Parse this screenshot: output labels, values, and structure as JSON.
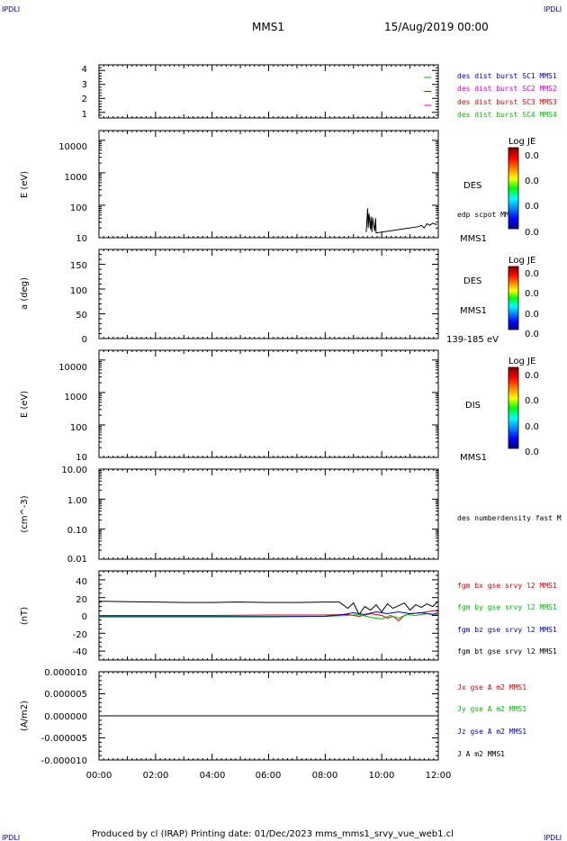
{
  "header": {
    "corner_tl": "IPDLI",
    "corner_tr": "IPDLI",
    "corner_bl": "IPDLI",
    "corner_br": "IPDLI",
    "spacecraft": "MMS1",
    "date": "15/Aug/2019 00:00"
  },
  "footer": {
    "text": "Produced by cl (IRAP)   Printing date: 01/Dec/2023   mms_mms1_srvy_vue_web1.cl"
  },
  "x_axis": {
    "ticks": [
      "00:00",
      "02:00",
      "04:00",
      "06:00",
      "08:00",
      "10:00",
      "12:00"
    ],
    "range_hours": [
      0,
      12
    ]
  },
  "colorbar": {
    "label": "Log JE",
    "values": [
      "0.0",
      "0.0",
      "0.0",
      "0.0"
    ]
  },
  "colors": {
    "c1": "#0000cc",
    "c2": "#cc00cc",
    "c3": "#dd0000",
    "c4": "#00bb00",
    "bx": "#dd0000",
    "by": "#00bb00",
    "bz": "#0000cc",
    "bt": "#000000"
  },
  "panels": {
    "p1": {
      "ticks": [
        "4",
        "3",
        "2",
        "1"
      ],
      "legend": [
        "des dist burst SC1 MMS1",
        "des dist burst SC2 MMS2",
        "des dist burst SC3 MMS3",
        "des dist burst SC4 MMS4"
      ]
    },
    "p2": {
      "ylabel": "E (eV)",
      "ticks": [
        "10000",
        "1000",
        "100",
        "10"
      ],
      "species": "DES",
      "overlay_label": "edp scpot MMS1",
      "sc_label": "MMS1"
    },
    "p3": {
      "ylabel": "a (deg)",
      "ticks": [
        "150",
        "100",
        "50",
        "0"
      ],
      "species": "DES",
      "sc_label": "MMS1",
      "energy_label": "139-185 eV"
    },
    "p4": {
      "ylabel": "E (eV)",
      "ticks": [
        "10000",
        "1000",
        "100",
        "10"
      ],
      "species": "DIS",
      "sc_label": "MMS1"
    },
    "p5": {
      "ylabel": "(cm^-3)",
      "ticks": [
        "10.00",
        "1.00",
        "0.10",
        "0.01"
      ],
      "legend": "des numberdensity fast M"
    },
    "p6": {
      "ylabel": "(nT)",
      "ticks": [
        "40",
        "20",
        "0",
        "-20",
        "-40"
      ],
      "legend": [
        "fgm bx gse srvy l2 MMS1",
        "fgm by gse srvy l2 MMS1",
        "fgm bz gse srvy l2 MMS1",
        "fgm bt gse srvy l2 MMS1"
      ]
    },
    "p7": {
      "ylabel": "(A/m2)",
      "ticks": [
        "0.000010",
        "0.000005",
        "0.000000",
        "-0.000005",
        "-0.000010"
      ],
      "legend": [
        "Jx gse A m2 MMS1",
        "Jy gse A m2 MMS1",
        "Jz gse A m2 MMS1",
        "J A m2 MMS1"
      ]
    }
  },
  "chart_data": [
    {
      "type": "line",
      "panel": "p1",
      "xlabel": "",
      "ylabel": "",
      "ylim": [
        0.6,
        4.4
      ],
      "series": [
        {
          "name": "des dist burst SC2 MMS2",
          "x": [
            11.5,
            12.0
          ],
          "y": [
            1.5,
            1.5
          ]
        },
        {
          "name": "des dist burst SC3 MMS3",
          "x": [
            11.5,
            12.0
          ],
          "y": [
            2.5,
            2.5
          ]
        },
        {
          "name": "des dist burst SC4 MMS4",
          "x": [
            11.5,
            12.0
          ],
          "y": [
            3.5,
            3.5
          ]
        }
      ]
    },
    {
      "type": "line",
      "panel": "p2",
      "ylabel": "E (eV)",
      "ylim": [
        10,
        20000
      ],
      "log_scale": true,
      "series": [
        {
          "name": "edp scpot MMS1",
          "x": [
            9.45,
            9.5,
            9.52,
            9.55,
            9.6,
            9.62,
            9.65,
            9.68,
            9.7,
            9.75,
            9.78,
            9.8,
            11.3,
            11.4,
            11.5,
            11.6,
            11.7,
            11.8,
            11.9,
            11.95
          ],
          "y": [
            15,
            80,
            20,
            55,
            18,
            45,
            15,
            42,
            30,
            16,
            40,
            14,
            22,
            24,
            20,
            27,
            24,
            28,
            26,
            25
          ]
        }
      ]
    },
    {
      "type": "line",
      "panel": "p6",
      "ylabel": "(nT)",
      "ylim": [
        -50,
        50
      ],
      "series": [
        {
          "name": "fgm bt gse srvy l2 MMS1",
          "x": [
            0,
            1,
            2,
            3,
            4,
            5,
            6,
            7,
            8,
            8.5,
            8.8,
            9.0,
            9.2,
            9.4,
            9.6,
            9.8,
            10.0,
            10.2,
            10.4,
            10.6,
            10.8,
            11.0,
            11.2,
            11.4,
            11.6,
            11.8,
            12.0
          ],
          "y": [
            16,
            15.5,
            15,
            14.5,
            14.5,
            15,
            14.5,
            14.5,
            15,
            15,
            8,
            14,
            1,
            10,
            6,
            12,
            4,
            13,
            8,
            11,
            14,
            6,
            12,
            9,
            13,
            10,
            16
          ]
        },
        {
          "name": "fgm bx gse srvy l2 MMS1",
          "x": [
            0,
            2,
            4,
            6,
            8,
            8.8,
            9.2,
            9.6,
            10.0,
            10.2,
            10.4,
            10.6,
            10.8,
            11.0,
            11.4,
            11.8,
            12.0
          ],
          "y": [
            0,
            0,
            0,
            0.5,
            0.5,
            1,
            -1,
            2,
            0,
            -3,
            -1,
            -6,
            0,
            2,
            3,
            5,
            6
          ]
        },
        {
          "name": "fgm by gse srvy l2 MMS1",
          "x": [
            0,
            2,
            4,
            6,
            8,
            8.8,
            9.2,
            9.6,
            10.0,
            10.3,
            10.6,
            10.9,
            11.2,
            11.6,
            12.0
          ],
          "y": [
            -1,
            -1,
            -1,
            -1,
            -1,
            0,
            1,
            -2,
            -4,
            0,
            -3,
            1,
            0,
            2,
            1
          ]
        },
        {
          "name": "fgm bz gse srvy l2 MMS1",
          "x": [
            0,
            2,
            4,
            6,
            8,
            8.6,
            9.0,
            9.4,
            9.8,
            10.2,
            10.6,
            11.0,
            11.4,
            11.8,
            12.0
          ],
          "y": [
            -1.5,
            -1.5,
            -1.5,
            -1.5,
            -1,
            1,
            3,
            1,
            4,
            2,
            4,
            2,
            3,
            1,
            3
          ]
        }
      ]
    },
    {
      "type": "line",
      "panel": "p7",
      "ylabel": "(A/m2)",
      "ylim": [
        -1e-05,
        1e-05
      ],
      "series": [
        {
          "name": "J A m2 MMS1",
          "x": [
            0,
            12
          ],
          "y": [
            0,
            0
          ]
        }
      ]
    }
  ]
}
